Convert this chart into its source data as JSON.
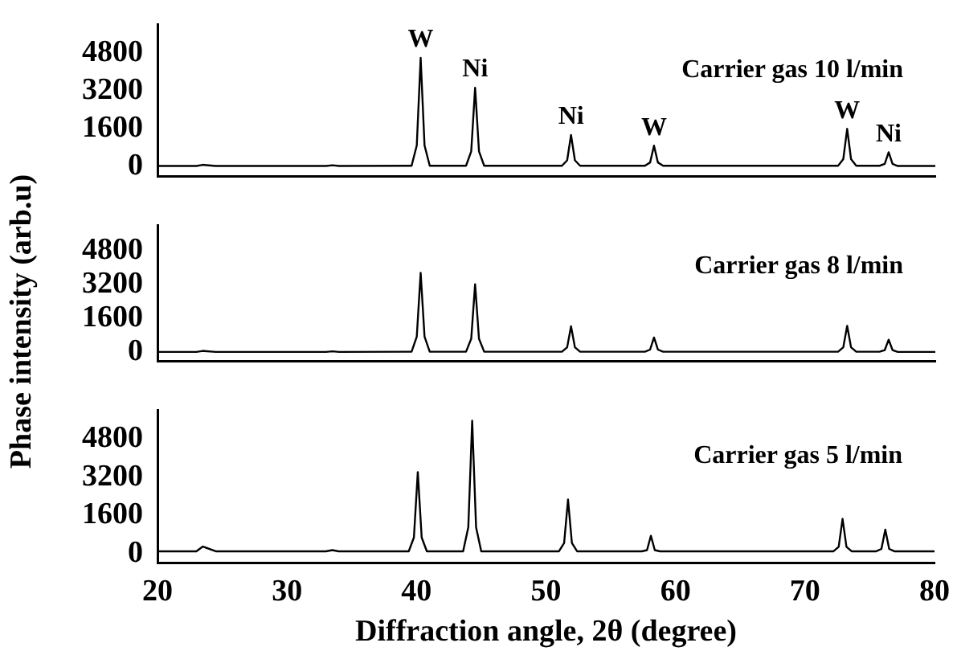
{
  "chart_data": [
    {
      "type": "line",
      "title": "Carrier gas 10 l/min",
      "color": "#000000",
      "marker": "none",
      "tick_labels": "y",
      "x": [
        20,
        23,
        23.5,
        24.5,
        33,
        33.5,
        34,
        39.6,
        40.0,
        40.3,
        40.6,
        41.0,
        43.8,
        44.2,
        44.5,
        44.8,
        45.2,
        51.2,
        51.6,
        51.9,
        52.2,
        52.6,
        57.6,
        58.0,
        58.3,
        58.6,
        59.0,
        72.5,
        72.9,
        73.2,
        73.5,
        73.9,
        75.7,
        76.1,
        76.4,
        76.7,
        77.1,
        80
      ],
      "values": [
        30,
        30,
        80,
        30,
        30,
        60,
        30,
        40,
        900,
        4600,
        900,
        40,
        40,
        650,
        3340,
        650,
        40,
        40,
        270,
        1340,
        270,
        40,
        40,
        180,
        890,
        180,
        40,
        40,
        320,
        1600,
        320,
        40,
        40,
        120,
        610,
        120,
        30,
        30
      ],
      "xlim": [
        20,
        80
      ],
      "xticks": [
        20,
        30,
        40,
        50,
        60,
        70,
        80
      ],
      "ylim": [
        -400,
        6000
      ],
      "yticks": [
        0,
        1600,
        3200,
        4800
      ],
      "annotations": [
        {
          "text": "W",
          "x": 40.3,
          "y": 4600
        },
        {
          "text": "Ni",
          "x": 44.5,
          "y": 3340
        },
        {
          "text": "Ni",
          "x": 51.9,
          "y": 1340
        },
        {
          "text": "W",
          "x": 58.3,
          "y": 890
        },
        {
          "text": "W",
          "x": 73.2,
          "y": 1600
        },
        {
          "text": "Ni",
          "x": 76.4,
          "y": 610
        }
      ]
    },
    {
      "type": "line",
      "title": "Carrier gas 8 l/min",
      "ylabel": "Phase intensity (arb.u)",
      "color": "#000000",
      "marker": "none",
      "tick_labels": "y",
      "x": [
        20,
        23,
        23.5,
        24.5,
        33,
        33.5,
        34,
        39.6,
        40.0,
        40.3,
        40.6,
        41.0,
        43.8,
        44.2,
        44.5,
        44.8,
        45.2,
        51.2,
        51.6,
        51.9,
        52.2,
        52.6,
        57.6,
        58.0,
        58.3,
        58.6,
        59.0,
        72.5,
        72.9,
        73.2,
        73.5,
        73.9,
        75.7,
        76.1,
        76.4,
        76.7,
        77.1,
        80
      ],
      "values": [
        30,
        30,
        80,
        30,
        30,
        60,
        30,
        40,
        750,
        3770,
        750,
        40,
        40,
        650,
        3230,
        650,
        40,
        40,
        250,
        1240,
        250,
        40,
        40,
        140,
        710,
        140,
        40,
        40,
        250,
        1260,
        250,
        40,
        40,
        120,
        610,
        120,
        30,
        30
      ],
      "xlim": [
        20,
        80
      ],
      "xticks": [
        20,
        30,
        40,
        50,
        60,
        70,
        80
      ],
      "ylim": [
        -400,
        6000
      ],
      "yticks": [
        0,
        1600,
        3200,
        4800
      ]
    },
    {
      "type": "line",
      "title": "Carrier gas 5 l/min",
      "xlabel": "Diffraction angle, 2θ (degree)",
      "color": "#000000",
      "marker": "none",
      "x": [
        20,
        23,
        23.5,
        24.5,
        33,
        33.5,
        34,
        39.4,
        39.8,
        40.1,
        40.4,
        40.8,
        43.6,
        44.0,
        44.3,
        44.6,
        45.0,
        51.0,
        51.4,
        51.7,
        52.0,
        52.4,
        57.4,
        57.8,
        58.1,
        58.4,
        58.8,
        72.2,
        72.6,
        72.9,
        73.2,
        73.6,
        75.5,
        75.9,
        76.2,
        76.5,
        76.9,
        80
      ],
      "values": [
        100,
        100,
        300,
        100,
        100,
        150,
        100,
        100,
        680,
        3420,
        680,
        100,
        100,
        1110,
        5570,
        1110,
        100,
        100,
        450,
        2270,
        450,
        100,
        100,
        150,
        750,
        150,
        100,
        100,
        290,
        1460,
        290,
        100,
        100,
        200,
        1010,
        200,
        100,
        100
      ],
      "xlim": [
        20,
        80
      ],
      "xticks": [
        20,
        30,
        40,
        50,
        60,
        70,
        80
      ],
      "ylim": [
        -400,
        6000
      ],
      "yticks": [
        0,
        1600,
        3200,
        4800
      ]
    }
  ]
}
